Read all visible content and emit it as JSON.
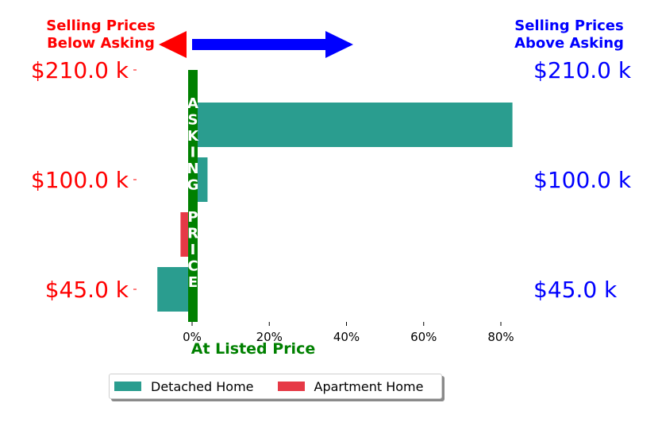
{
  "chart_data": {
    "type": "bar",
    "orientation": "horizontal",
    "header_left": [
      "Selling Prices",
      "Below Asking"
    ],
    "header_right": [
      "Selling Prices",
      "Above Asking"
    ],
    "xlabel": "At Listed Price",
    "center_label": "ASKING PRICE",
    "y_labels_left": [
      "$210.0 k",
      "$100.0 k",
      "$45.0 k"
    ],
    "y_labels_right": [
      "$210.0 k",
      "$100.0 k",
      "$45.0 k"
    ],
    "x_ticks": [
      "0%",
      "20%",
      "40%",
      "60%",
      "80%"
    ],
    "x_tick_values": [
      0,
      20,
      40,
      60,
      80
    ],
    "xlim": [
      -10,
      83
    ],
    "series": [
      {
        "name": "Detached Home",
        "color": "#2a9d8f",
        "bars": [
          {
            "rank": 1,
            "value": 83
          },
          {
            "rank": 2,
            "value": 4
          },
          {
            "rank": 4,
            "value": -9
          }
        ]
      },
      {
        "name": "Apartment Home",
        "color": "#e63946",
        "bars": [
          {
            "rank": 3,
            "value": -3
          }
        ]
      }
    ],
    "colors": {
      "below": "#ff0000",
      "above": "#0000ff",
      "asking": "#008000",
      "axis": "#000000"
    },
    "legend_position": "bottom-center"
  },
  "legend": {
    "items": [
      {
        "label": "Detached Home",
        "color": "#2a9d8f"
      },
      {
        "label": "Apartment Home",
        "color": "#e63946"
      }
    ]
  }
}
